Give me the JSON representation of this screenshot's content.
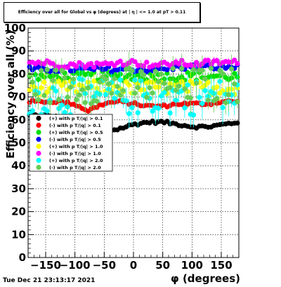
{
  "title": "Efficiency over all for Global vs φ (degrees) at | η | <= 1.0 at pT > 0.11",
  "footer": "Tue Dec 21 23:13:17 2021",
  "chart_data": {
    "type": "scatter",
    "title": "Efficiency over all for Global vs φ (degrees) at | η | <= 1.0 at pT > 0.11",
    "xlabel": "φ (degrees)",
    "ylabel": "Efficiency over all (%)",
    "xlim": [
      -180,
      180
    ],
    "ylim": [
      0,
      100
    ],
    "grid": true,
    "legend_position": "middle-left",
    "x_ticks": [
      -150,
      -100,
      -50,
      0,
      50,
      100,
      150
    ],
    "y_ticks": [
      0,
      10,
      20,
      30,
      40,
      50,
      60,
      70,
      80,
      90,
      100
    ],
    "series": [
      {
        "name": "(+) with p T/|q| > 0.1",
        "color": "#000000",
        "base": [
          62,
          62,
          61,
          60,
          57,
          55,
          56,
          58,
          59,
          59,
          58,
          57,
          57,
          58,
          59
        ],
        "noise": 0.6,
        "err": 0.4
      },
      {
        "name": "(-) with p T/|q| > 0.1",
        "color": "#ff0000",
        "base": [
          68,
          68,
          68,
          67,
          64,
          67,
          68,
          67,
          66,
          66,
          67,
          67,
          67,
          68,
          68
        ],
        "noise": 0.6,
        "err": 0.4
      },
      {
        "name": "(+) with p T/|q| > 0.5",
        "color": "#00e000",
        "base": [
          78,
          79,
          79,
          79,
          79,
          79,
          79,
          79,
          79,
          79,
          79,
          79,
          79,
          79,
          79
        ],
        "noise": 2.0,
        "err": 2.0
      },
      {
        "name": "(-) with p T/|q| > 0.5",
        "color": "#0000ff",
        "base": [
          82,
          82,
          82,
          82,
          82,
          82,
          82,
          82,
          82,
          82,
          83,
          83,
          83,
          83,
          83
        ],
        "noise": 1.2,
        "err": 1.0
      },
      {
        "name": "(+) with p T/|q| > 1.0",
        "color": "#ffff00",
        "base": [
          74,
          74,
          74,
          74,
          74,
          74,
          74,
          74,
          74,
          74,
          74,
          74,
          74,
          74,
          74
        ],
        "noise": 3.0,
        "err": 3.0
      },
      {
        "name": "(-) with p T/|q| > 1.0",
        "color": "#ff00ff",
        "base": [
          85,
          85,
          84,
          84,
          84,
          84,
          85,
          85,
          84,
          84,
          85,
          84,
          85,
          85,
          85
        ],
        "noise": 1.2,
        "err": 1.2
      },
      {
        "name": "(+) with p T/|q| > 2.0",
        "color": "#00ffff",
        "base": [
          70,
          70,
          70,
          70,
          70,
          70,
          70,
          70,
          70,
          70,
          70,
          70,
          70,
          70,
          70
        ],
        "noise": 8.0,
        "err": 5.0
      },
      {
        "name": "(-) with p T/|q| > 2.0",
        "color": "#66cc55",
        "base": [
          75,
          75,
          75,
          75,
          75,
          75,
          75,
          75,
          75,
          75,
          75,
          75,
          75,
          75,
          75
        ],
        "noise": 8.0,
        "err": 5.0
      }
    ]
  }
}
